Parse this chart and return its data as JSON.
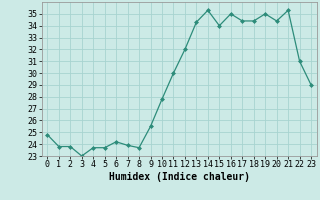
{
  "x": [
    0,
    1,
    2,
    3,
    4,
    5,
    6,
    7,
    8,
    9,
    10,
    11,
    12,
    13,
    14,
    15,
    16,
    17,
    18,
    19,
    20,
    21,
    22,
    23
  ],
  "y": [
    24.8,
    23.8,
    23.8,
    23.0,
    23.7,
    23.7,
    24.2,
    23.9,
    23.7,
    25.5,
    27.8,
    30.0,
    32.0,
    34.3,
    35.3,
    34.0,
    35.0,
    34.4,
    34.4,
    35.0,
    34.4,
    35.3,
    31.0,
    29.0
  ],
  "xlabel": "Humidex (Indice chaleur)",
  "ylim": [
    23,
    36
  ],
  "xlim": [
    -0.5,
    23.5
  ],
  "yticks": [
    23,
    24,
    25,
    26,
    27,
    28,
    29,
    30,
    31,
    32,
    33,
    34,
    35
  ],
  "xticks": [
    0,
    1,
    2,
    3,
    4,
    5,
    6,
    7,
    8,
    9,
    10,
    11,
    12,
    13,
    14,
    15,
    16,
    17,
    18,
    19,
    20,
    21,
    22,
    23
  ],
  "line_color": "#2d8c7a",
  "marker_color": "#2d8c7a",
  "bg_color": "#cceae6",
  "grid_color": "#a8d4d0",
  "xlabel_fontsize": 7,
  "tick_fontsize": 6
}
